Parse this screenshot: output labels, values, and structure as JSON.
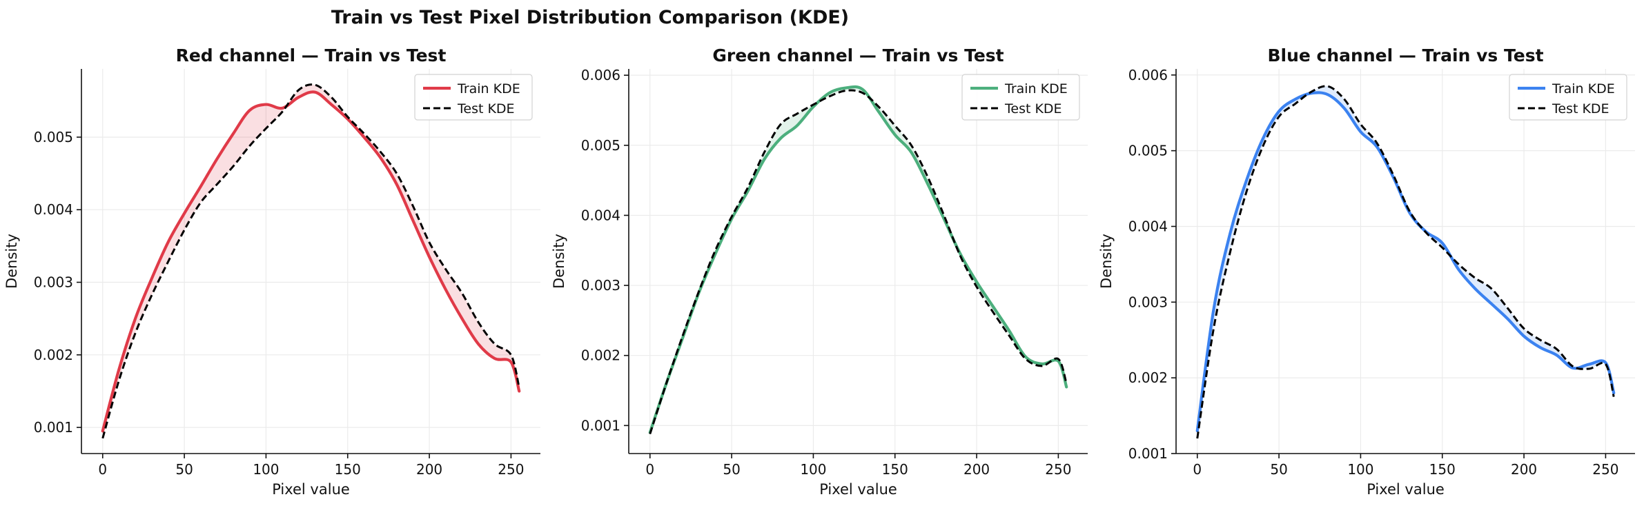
{
  "figure_title": "Train vs Test Pixel Distribution Comparison (KDE)",
  "chart_data": [
    {
      "type": "line",
      "title": "Red channel — Train vs Test",
      "xlabel": "Pixel value",
      "ylabel": "Density",
      "xlim": [
        -13,
        268
      ],
      "ylim": [
        0.00064,
        0.00594
      ],
      "xticks": [
        0,
        50,
        100,
        150,
        200,
        250
      ],
      "yticks": [
        0.001,
        0.002,
        0.003,
        0.004,
        0.005
      ],
      "ytick_labels": [
        "0.001",
        "0.002",
        "0.003",
        "0.004",
        "0.005"
      ],
      "grid": true,
      "legend": "top-right",
      "fill_between": true,
      "x": [
        0,
        10,
        20,
        30,
        40,
        50,
        60,
        70,
        80,
        90,
        100,
        110,
        120,
        130,
        140,
        150,
        160,
        170,
        180,
        190,
        200,
        210,
        220,
        230,
        240,
        250,
        255
      ],
      "series": [
        {
          "name": "Train KDE",
          "color": "#e03a48",
          "style": "solid",
          "values": [
            0.00095,
            0.0018,
            0.0025,
            0.00305,
            0.00355,
            0.00395,
            0.00432,
            0.0047,
            0.00505,
            0.00537,
            0.00545,
            0.0054,
            0.00555,
            0.00562,
            0.00545,
            0.00525,
            0.005,
            0.00472,
            0.00435,
            0.00385,
            0.00335,
            0.0029,
            0.0025,
            0.00215,
            0.00195,
            0.0019,
            0.0015
          ]
        },
        {
          "name": "Test KDE",
          "color": "#000000",
          "style": "dashed",
          "values": [
            0.00085,
            0.00165,
            0.0023,
            0.00282,
            0.00328,
            0.00372,
            0.0041,
            0.00435,
            0.0046,
            0.00488,
            0.00512,
            0.00535,
            0.00565,
            0.00572,
            0.00555,
            0.00528,
            0.00505,
            0.0048,
            0.0045,
            0.00405,
            0.00355,
            0.00318,
            0.00285,
            0.00245,
            0.00215,
            0.002,
            0.00155
          ]
        }
      ]
    },
    {
      "type": "line",
      "title": "Green channel — Train vs Test",
      "xlabel": "Pixel value",
      "ylabel": "Density",
      "xlim": [
        -13,
        268
      ],
      "ylim": [
        0.0006,
        0.00609
      ],
      "xticks": [
        0,
        50,
        100,
        150,
        200,
        250
      ],
      "yticks": [
        0.001,
        0.002,
        0.003,
        0.004,
        0.005,
        0.006
      ],
      "ytick_labels": [
        "0.001",
        "0.002",
        "0.003",
        "0.004",
        "0.005",
        "0.006"
      ],
      "grid": true,
      "legend": "top-right",
      "fill_between": true,
      "x": [
        0,
        10,
        20,
        30,
        40,
        50,
        60,
        70,
        80,
        90,
        100,
        110,
        120,
        130,
        140,
        150,
        160,
        170,
        180,
        190,
        200,
        210,
        220,
        230,
        240,
        250,
        255
      ],
      "series": [
        {
          "name": "Train KDE",
          "color": "#4caf7d",
          "style": "solid",
          "values": [
            0.0009,
            0.0016,
            0.00225,
            0.0029,
            0.00345,
            0.00395,
            0.00435,
            0.0048,
            0.0051,
            0.00528,
            0.00555,
            0.00575,
            0.00582,
            0.0058,
            0.00548,
            0.00515,
            0.0049,
            0.00445,
            0.00395,
            0.00345,
            0.00305,
            0.0027,
            0.00235,
            0.00198,
            0.00188,
            0.00192,
            0.00155
          ]
        },
        {
          "name": "Test KDE",
          "color": "#000000",
          "style": "dashed",
          "values": [
            0.00088,
            0.0016,
            0.00228,
            0.00292,
            0.0035,
            0.00398,
            0.0044,
            0.0049,
            0.0053,
            0.00545,
            0.00558,
            0.0057,
            0.00578,
            0.00575,
            0.00555,
            0.00528,
            0.005,
            0.00455,
            0.004,
            0.00342,
            0.00298,
            0.00262,
            0.00228,
            0.00195,
            0.00185,
            0.00195,
            0.0016
          ]
        }
      ]
    },
    {
      "type": "line",
      "title": "Blue channel — Train vs Test",
      "xlabel": "Pixel value",
      "ylabel": "Density",
      "xlim": [
        -13,
        268
      ],
      "ylim": [
        0.001,
        0.00608
      ],
      "xticks": [
        0,
        50,
        100,
        150,
        200,
        250
      ],
      "yticks": [
        0.001,
        0.002,
        0.003,
        0.004,
        0.005,
        0.006
      ],
      "ytick_labels": [
        "0.001",
        "0.002",
        "0.003",
        "0.004",
        "0.005",
        "0.006"
      ],
      "grid": true,
      "legend": "top-right",
      "fill_between": true,
      "x": [
        0,
        10,
        20,
        30,
        40,
        50,
        60,
        70,
        80,
        90,
        100,
        110,
        120,
        130,
        140,
        150,
        160,
        170,
        180,
        190,
        200,
        210,
        220,
        230,
        240,
        250,
        255
      ],
      "series": [
        {
          "name": "Train KDE",
          "color": "#3b82f0",
          "style": "solid",
          "values": [
            0.0013,
            0.0029,
            0.0039,
            0.0046,
            0.00515,
            0.00552,
            0.00568,
            0.00576,
            0.00574,
            0.00556,
            0.00525,
            0.00505,
            0.00465,
            0.00418,
            0.00393,
            0.00378,
            0.00343,
            0.00318,
            0.00298,
            0.00278,
            0.00255,
            0.0024,
            0.0023,
            0.00213,
            0.00218,
            0.0022,
            0.0018
          ]
        },
        {
          "name": "Test KDE",
          "color": "#000000",
          "style": "dashed",
          "values": [
            0.0012,
            0.00265,
            0.00365,
            0.00445,
            0.00505,
            0.00545,
            0.00562,
            0.00578,
            0.00585,
            0.00568,
            0.00535,
            0.0051,
            0.00468,
            0.0042,
            0.00392,
            0.00372,
            0.0035,
            0.00332,
            0.00318,
            0.00292,
            0.00265,
            0.0025,
            0.00238,
            0.00215,
            0.00212,
            0.00218,
            0.00175
          ]
        }
      ]
    }
  ]
}
